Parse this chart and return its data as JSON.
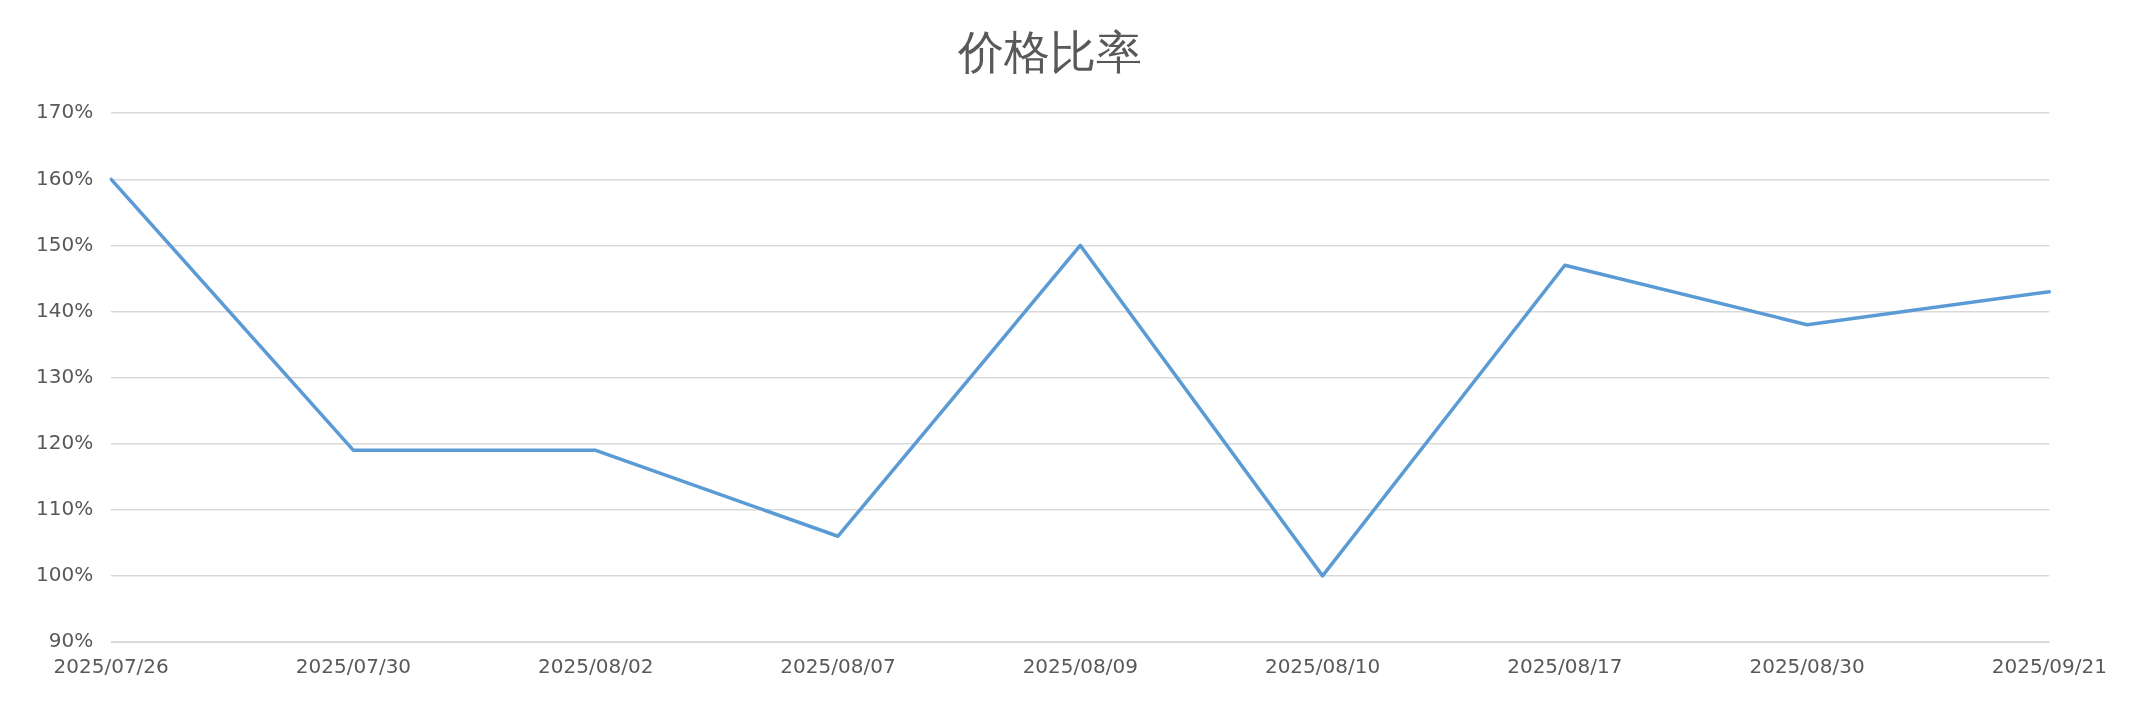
{
  "chart_data": {
    "type": "line",
    "title": "价格比率",
    "categories": [
      "2025/07/26",
      "2025/07/30",
      "2025/08/02",
      "2025/08/07",
      "2025/08/09",
      "2025/08/10",
      "2025/08/17",
      "2025/08/30",
      "2025/09/21"
    ],
    "series": [
      {
        "color": "#5b9bd5",
        "values": [
          160,
          119,
          119,
          106,
          150,
          100,
          147,
          138,
          143
        ]
      }
    ],
    "ylim": [
      90,
      170
    ],
    "yticks": [
      {
        "value": 90,
        "label": "90%"
      },
      {
        "value": 100,
        "label": "100%"
      },
      {
        "value": 110,
        "label": "110%"
      },
      {
        "value": 120,
        "label": "120%"
      },
      {
        "value": 130,
        "label": "130%"
      },
      {
        "value": 140,
        "label": "140%"
      },
      {
        "value": 150,
        "label": "150%"
      },
      {
        "value": 160,
        "label": "160%"
      },
      {
        "value": 170,
        "label": "170%"
      }
    ],
    "grid": "y",
    "legend": false,
    "marker": "none",
    "line_style": "solid"
  }
}
